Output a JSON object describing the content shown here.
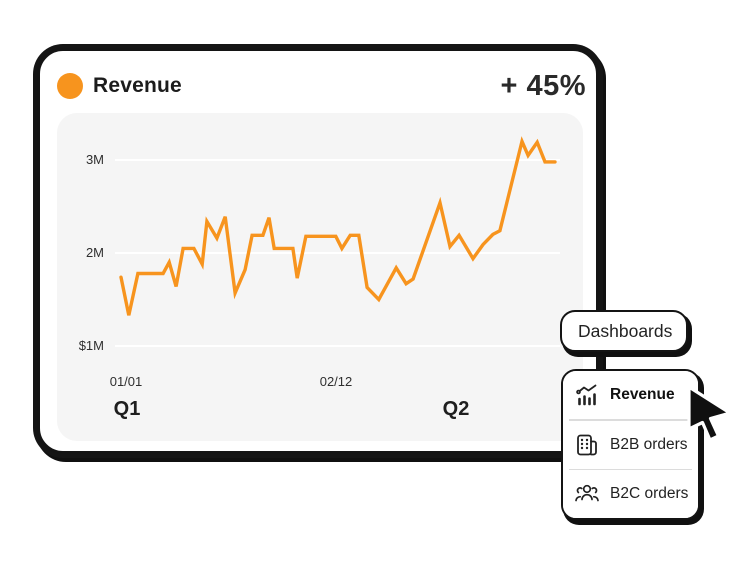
{
  "card": {
    "title": "Revenue",
    "delta": "+ 45%"
  },
  "colors": {
    "accent_orange": "#F7941E",
    "outline_ink": "#141414",
    "panel_gray": "#F5F5F5",
    "gridline": "#FFFFFF"
  },
  "chart_data": {
    "type": "line",
    "title": "Revenue",
    "xlabel": "",
    "ylabel": "",
    "ylim": [
      1,
      3.3
    ],
    "grid": true,
    "legend_position": "none",
    "yticks": [
      {
        "label": "3M",
        "value": 3
      },
      {
        "label": "2M",
        "value": 2
      },
      {
        "label": "$1M",
        "value": 1
      }
    ],
    "xticks": [
      {
        "label": "01/01",
        "pos": 1
      },
      {
        "label": "02/12",
        "pos": 49.5
      }
    ],
    "period_labels": [
      {
        "label": "Q1",
        "pos": 1.5
      },
      {
        "label": "Q2",
        "pos": 77
      }
    ],
    "series": [
      {
        "name": "Revenue",
        "color": "#F7941E",
        "unit": "M",
        "points": [
          [
            0,
            1.74
          ],
          [
            1.8,
            1.33
          ],
          [
            3.9,
            1.78
          ],
          [
            9.7,
            1.78
          ],
          [
            11.1,
            1.9
          ],
          [
            12.7,
            1.64
          ],
          [
            14.3,
            2.05
          ],
          [
            16.8,
            2.05
          ],
          [
            18.7,
            1.88
          ],
          [
            19.8,
            2.34
          ],
          [
            22.1,
            2.16
          ],
          [
            24,
            2.39
          ],
          [
            26.3,
            1.57
          ],
          [
            28.6,
            1.82
          ],
          [
            30.2,
            2.19
          ],
          [
            32.7,
            2.19
          ],
          [
            34.1,
            2.38
          ],
          [
            35.3,
            2.05
          ],
          [
            39.6,
            2.05
          ],
          [
            40.6,
            1.73
          ],
          [
            42.6,
            2.18
          ],
          [
            49.5,
            2.18
          ],
          [
            50.9,
            2.05
          ],
          [
            52.8,
            2.19
          ],
          [
            54.8,
            2.19
          ],
          [
            56.7,
            1.63
          ],
          [
            59.4,
            1.5
          ],
          [
            63.4,
            1.84
          ],
          [
            65.7,
            1.67
          ],
          [
            67.3,
            1.72
          ],
          [
            73.5,
            2.54
          ],
          [
            75.8,
            2.07
          ],
          [
            77.9,
            2.19
          ],
          [
            81.1,
            1.94
          ],
          [
            83.4,
            2.09
          ],
          [
            85.7,
            2.2
          ],
          [
            87.3,
            2.24
          ],
          [
            92.4,
            3.2
          ],
          [
            93.8,
            3.05
          ],
          [
            95.9,
            3.19
          ],
          [
            97.7,
            2.98
          ],
          [
            100,
            2.98
          ]
        ]
      }
    ]
  },
  "dropdown": {
    "trigger_label": "Dashboards",
    "items": [
      {
        "label": "Revenue",
        "icon": "analytics-icon",
        "selected": true
      },
      {
        "label": "B2B orders",
        "icon": "building-icon",
        "selected": false
      },
      {
        "label": "B2C orders",
        "icon": "people-icon",
        "selected": false
      }
    ]
  }
}
